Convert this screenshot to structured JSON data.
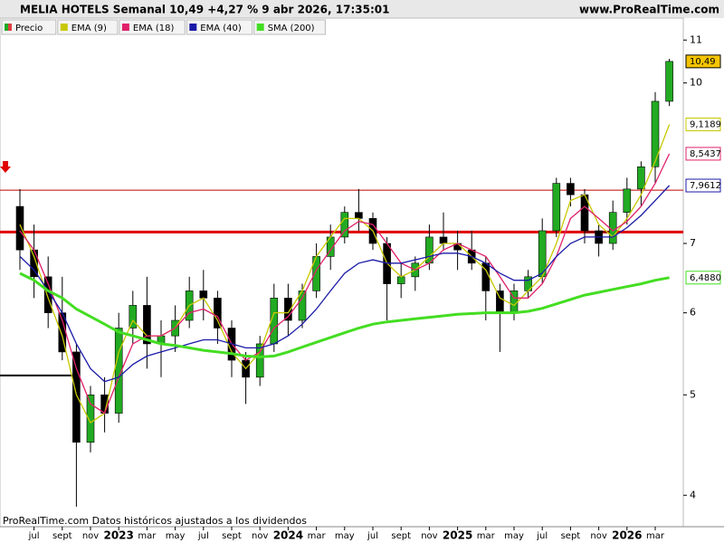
{
  "chart_data": {
    "type": "candlestick",
    "title": "MELIA HOTELS Semanal 10,49 +4,27 % 9 abr 2026, 17:35:01",
    "source": "www.ProRealTime.com",
    "footer": "ProRealTime.com  Datos históricos ajustados a los dividendos",
    "log_scale": true,
    "grid": false,
    "legend_position": "top-left",
    "x": [
      "2022-06",
      "2022-07",
      "2022-08",
      "2022-09",
      "2022-10",
      "2022-11",
      "2022-12",
      "2023-01",
      "2023-02",
      "2023-03",
      "2023-04",
      "2023-05",
      "2023-06",
      "2023-07",
      "2023-08",
      "2023-09",
      "2023-10",
      "2023-11",
      "2023-12",
      "2024-01",
      "2024-02",
      "2024-03",
      "2024-04",
      "2024-05",
      "2024-06",
      "2024-07",
      "2024-08",
      "2024-09",
      "2024-10",
      "2024-11",
      "2024-12",
      "2025-01",
      "2025-02",
      "2025-03",
      "2025-04",
      "2025-05",
      "2025-06",
      "2025-07",
      "2025-08",
      "2025-09",
      "2025-10",
      "2025-11",
      "2025-12",
      "2026-01",
      "2026-02",
      "2026-03",
      "2026-04"
    ],
    "xticks": [
      {
        "value": "2022-07",
        "label": "jul"
      },
      {
        "value": "2022-09",
        "label": "sept"
      },
      {
        "value": "2022-11",
        "label": "nov"
      },
      {
        "value": "2023-01",
        "label": "2023"
      },
      {
        "value": "2023-03",
        "label": "mar"
      },
      {
        "value": "2023-05",
        "label": "may"
      },
      {
        "value": "2023-07",
        "label": "jul"
      },
      {
        "value": "2023-09",
        "label": "sept"
      },
      {
        "value": "2023-11",
        "label": "nov"
      },
      {
        "value": "2024-01",
        "label": "2024"
      },
      {
        "value": "2024-03",
        "label": "mar"
      },
      {
        "value": "2024-05",
        "label": "may"
      },
      {
        "value": "2024-07",
        "label": "jul"
      },
      {
        "value": "2024-09",
        "label": "sept"
      },
      {
        "value": "2024-11",
        "label": "nov"
      },
      {
        "value": "2025-01",
        "label": "2025"
      },
      {
        "value": "2025-03",
        "label": "mar"
      },
      {
        "value": "2025-05",
        "label": "may"
      },
      {
        "value": "2025-07",
        "label": "jul"
      },
      {
        "value": "2025-09",
        "label": "sept"
      },
      {
        "value": "2025-11",
        "label": "nov"
      },
      {
        "value": "2026-01",
        "label": "2026"
      },
      {
        "value": "2026-03",
        "label": "mar"
      }
    ],
    "ylim": [
      3.73,
      11.55
    ],
    "yticks": [
      4,
      5,
      6,
      7,
      10,
      11
    ],
    "series": [
      {
        "name": "Precio",
        "kind": "candles",
        "color": "#22aa22",
        "down_color": "#000000",
        "label_color": "#f5c400",
        "last_label": "10,49",
        "open": [
          7.6,
          6.9,
          6.5,
          6.0,
          5.5,
          4.5,
          5.0,
          4.8,
          5.8,
          6.1,
          5.6,
          5.7,
          5.9,
          6.3,
          6.2,
          5.8,
          5.4,
          5.2,
          5.6,
          6.2,
          5.9,
          6.3,
          6.8,
          7.1,
          7.5,
          7.4,
          7.0,
          6.4,
          6.5,
          6.7,
          7.1,
          7.0,
          6.9,
          6.7,
          6.3,
          6.0,
          6.3,
          6.5,
          7.2,
          8.0,
          7.8,
          7.2,
          7.0,
          7.5,
          7.9,
          8.3,
          9.6
        ],
        "high": [
          7.9,
          7.3,
          6.8,
          6.5,
          5.6,
          5.1,
          5.2,
          6.0,
          6.3,
          6.5,
          5.9,
          6.1,
          6.5,
          6.6,
          6.3,
          5.9,
          5.5,
          5.7,
          6.4,
          6.4,
          6.4,
          7.0,
          7.3,
          7.6,
          7.9,
          7.5,
          7.1,
          6.7,
          6.8,
          7.3,
          7.5,
          7.2,
          7.2,
          6.8,
          6.4,
          6.4,
          6.6,
          7.4,
          8.1,
          8.1,
          7.9,
          7.3,
          7.7,
          8.1,
          8.4,
          9.8,
          10.55
        ],
        "low": [
          6.6,
          6.2,
          5.8,
          5.4,
          3.9,
          4.4,
          4.6,
          4.7,
          5.6,
          5.3,
          5.2,
          5.5,
          5.8,
          5.9,
          5.6,
          5.2,
          4.9,
          5.1,
          5.5,
          5.7,
          5.8,
          6.2,
          6.6,
          7.0,
          7.2,
          6.9,
          5.9,
          6.2,
          6.3,
          6.6,
          6.9,
          6.6,
          6.6,
          5.9,
          5.5,
          5.9,
          6.2,
          6.4,
          7.1,
          7.6,
          7.0,
          6.8,
          6.9,
          7.3,
          7.6,
          8.0,
          9.5
        ],
        "values": [
          6.9,
          6.5,
          6.0,
          5.5,
          4.5,
          5.0,
          4.8,
          5.8,
          6.1,
          5.6,
          5.7,
          5.9,
          6.3,
          6.2,
          5.8,
          5.4,
          5.2,
          5.6,
          6.2,
          5.9,
          6.3,
          6.8,
          7.1,
          7.5,
          7.4,
          7.0,
          6.4,
          6.5,
          6.7,
          7.1,
          7.0,
          6.9,
          6.7,
          6.3,
          6.0,
          6.3,
          6.5,
          7.2,
          8.0,
          7.8,
          7.2,
          7.0,
          7.5,
          7.9,
          8.3,
          9.6,
          10.49
        ]
      },
      {
        "name": "EMA (9)",
        "kind": "line",
        "color": "#c8c800",
        "last_label": "9,1189",
        "values": [
          7.3,
          6.8,
          6.2,
          5.7,
          5.0,
          4.7,
          4.8,
          5.5,
          5.9,
          5.7,
          5.7,
          5.8,
          6.1,
          6.2,
          5.9,
          5.5,
          5.3,
          5.5,
          6.0,
          6.0,
          6.3,
          6.8,
          7.1,
          7.4,
          7.4,
          7.2,
          6.7,
          6.5,
          6.6,
          6.8,
          7.0,
          7.0,
          6.8,
          6.6,
          6.2,
          6.1,
          6.3,
          6.5,
          7.0,
          7.7,
          7.8,
          7.3,
          7.1,
          7.4,
          7.8,
          8.4,
          9.1189
        ]
      },
      {
        "name": "EMA (18)",
        "kind": "line",
        "color": "#e0206a",
        "last_label": "8,5437",
        "values": [
          7.2,
          6.9,
          6.4,
          5.9,
          5.3,
          4.9,
          4.8,
          5.2,
          5.6,
          5.7,
          5.7,
          5.8,
          6.0,
          6.05,
          5.95,
          5.6,
          5.4,
          5.5,
          5.8,
          5.95,
          6.2,
          6.6,
          6.9,
          7.2,
          7.35,
          7.3,
          7.0,
          6.7,
          6.6,
          6.7,
          6.9,
          7.0,
          6.9,
          6.8,
          6.5,
          6.2,
          6.2,
          6.4,
          6.8,
          7.4,
          7.6,
          7.4,
          7.2,
          7.35,
          7.6,
          8.0,
          8.5437
        ]
      },
      {
        "name": "EMA (40)",
        "kind": "line",
        "color": "#1a1aa8",
        "last_label": "7,9612",
        "values": [
          6.8,
          6.6,
          6.3,
          6.0,
          5.6,
          5.3,
          5.15,
          5.2,
          5.35,
          5.45,
          5.5,
          5.55,
          5.6,
          5.65,
          5.65,
          5.6,
          5.55,
          5.55,
          5.6,
          5.7,
          5.85,
          6.05,
          6.3,
          6.55,
          6.7,
          6.75,
          6.7,
          6.7,
          6.75,
          6.8,
          6.85,
          6.85,
          6.8,
          6.7,
          6.55,
          6.45,
          6.45,
          6.55,
          6.8,
          7.0,
          7.1,
          7.1,
          7.1,
          7.25,
          7.45,
          7.7,
          7.9612
        ]
      },
      {
        "name": "SMA (200)",
        "kind": "line",
        "color": "#44dd22",
        "last_label": "6,4880",
        "values": [
          6.55,
          6.45,
          6.3,
          6.2,
          6.05,
          5.95,
          5.85,
          5.75,
          5.7,
          5.65,
          5.6,
          5.58,
          5.55,
          5.52,
          5.5,
          5.48,
          5.45,
          5.44,
          5.45,
          5.5,
          5.56,
          5.62,
          5.68,
          5.74,
          5.8,
          5.85,
          5.88,
          5.9,
          5.92,
          5.94,
          5.96,
          5.98,
          5.99,
          6.0,
          6.0,
          6.0,
          6.02,
          6.06,
          6.12,
          6.18,
          6.24,
          6.28,
          6.32,
          6.36,
          6.4,
          6.45,
          6.488
        ]
      }
    ],
    "hlines": [
      {
        "value": 7.88,
        "color": "#c00000",
        "width": 1,
        "from": "2022-06",
        "to": "2026-04"
      },
      {
        "value": 7.18,
        "color": "#e00000",
        "width": 3,
        "from": "2022-06",
        "to": "2026-04"
      },
      {
        "value": 7.18,
        "color": "#800000",
        "width": 2,
        "from": "2025-10",
        "to": "2025-12"
      },
      {
        "value": 5.22,
        "color": "#000000",
        "width": 2,
        "from": "2022-06",
        "to": "2022-10"
      }
    ]
  }
}
